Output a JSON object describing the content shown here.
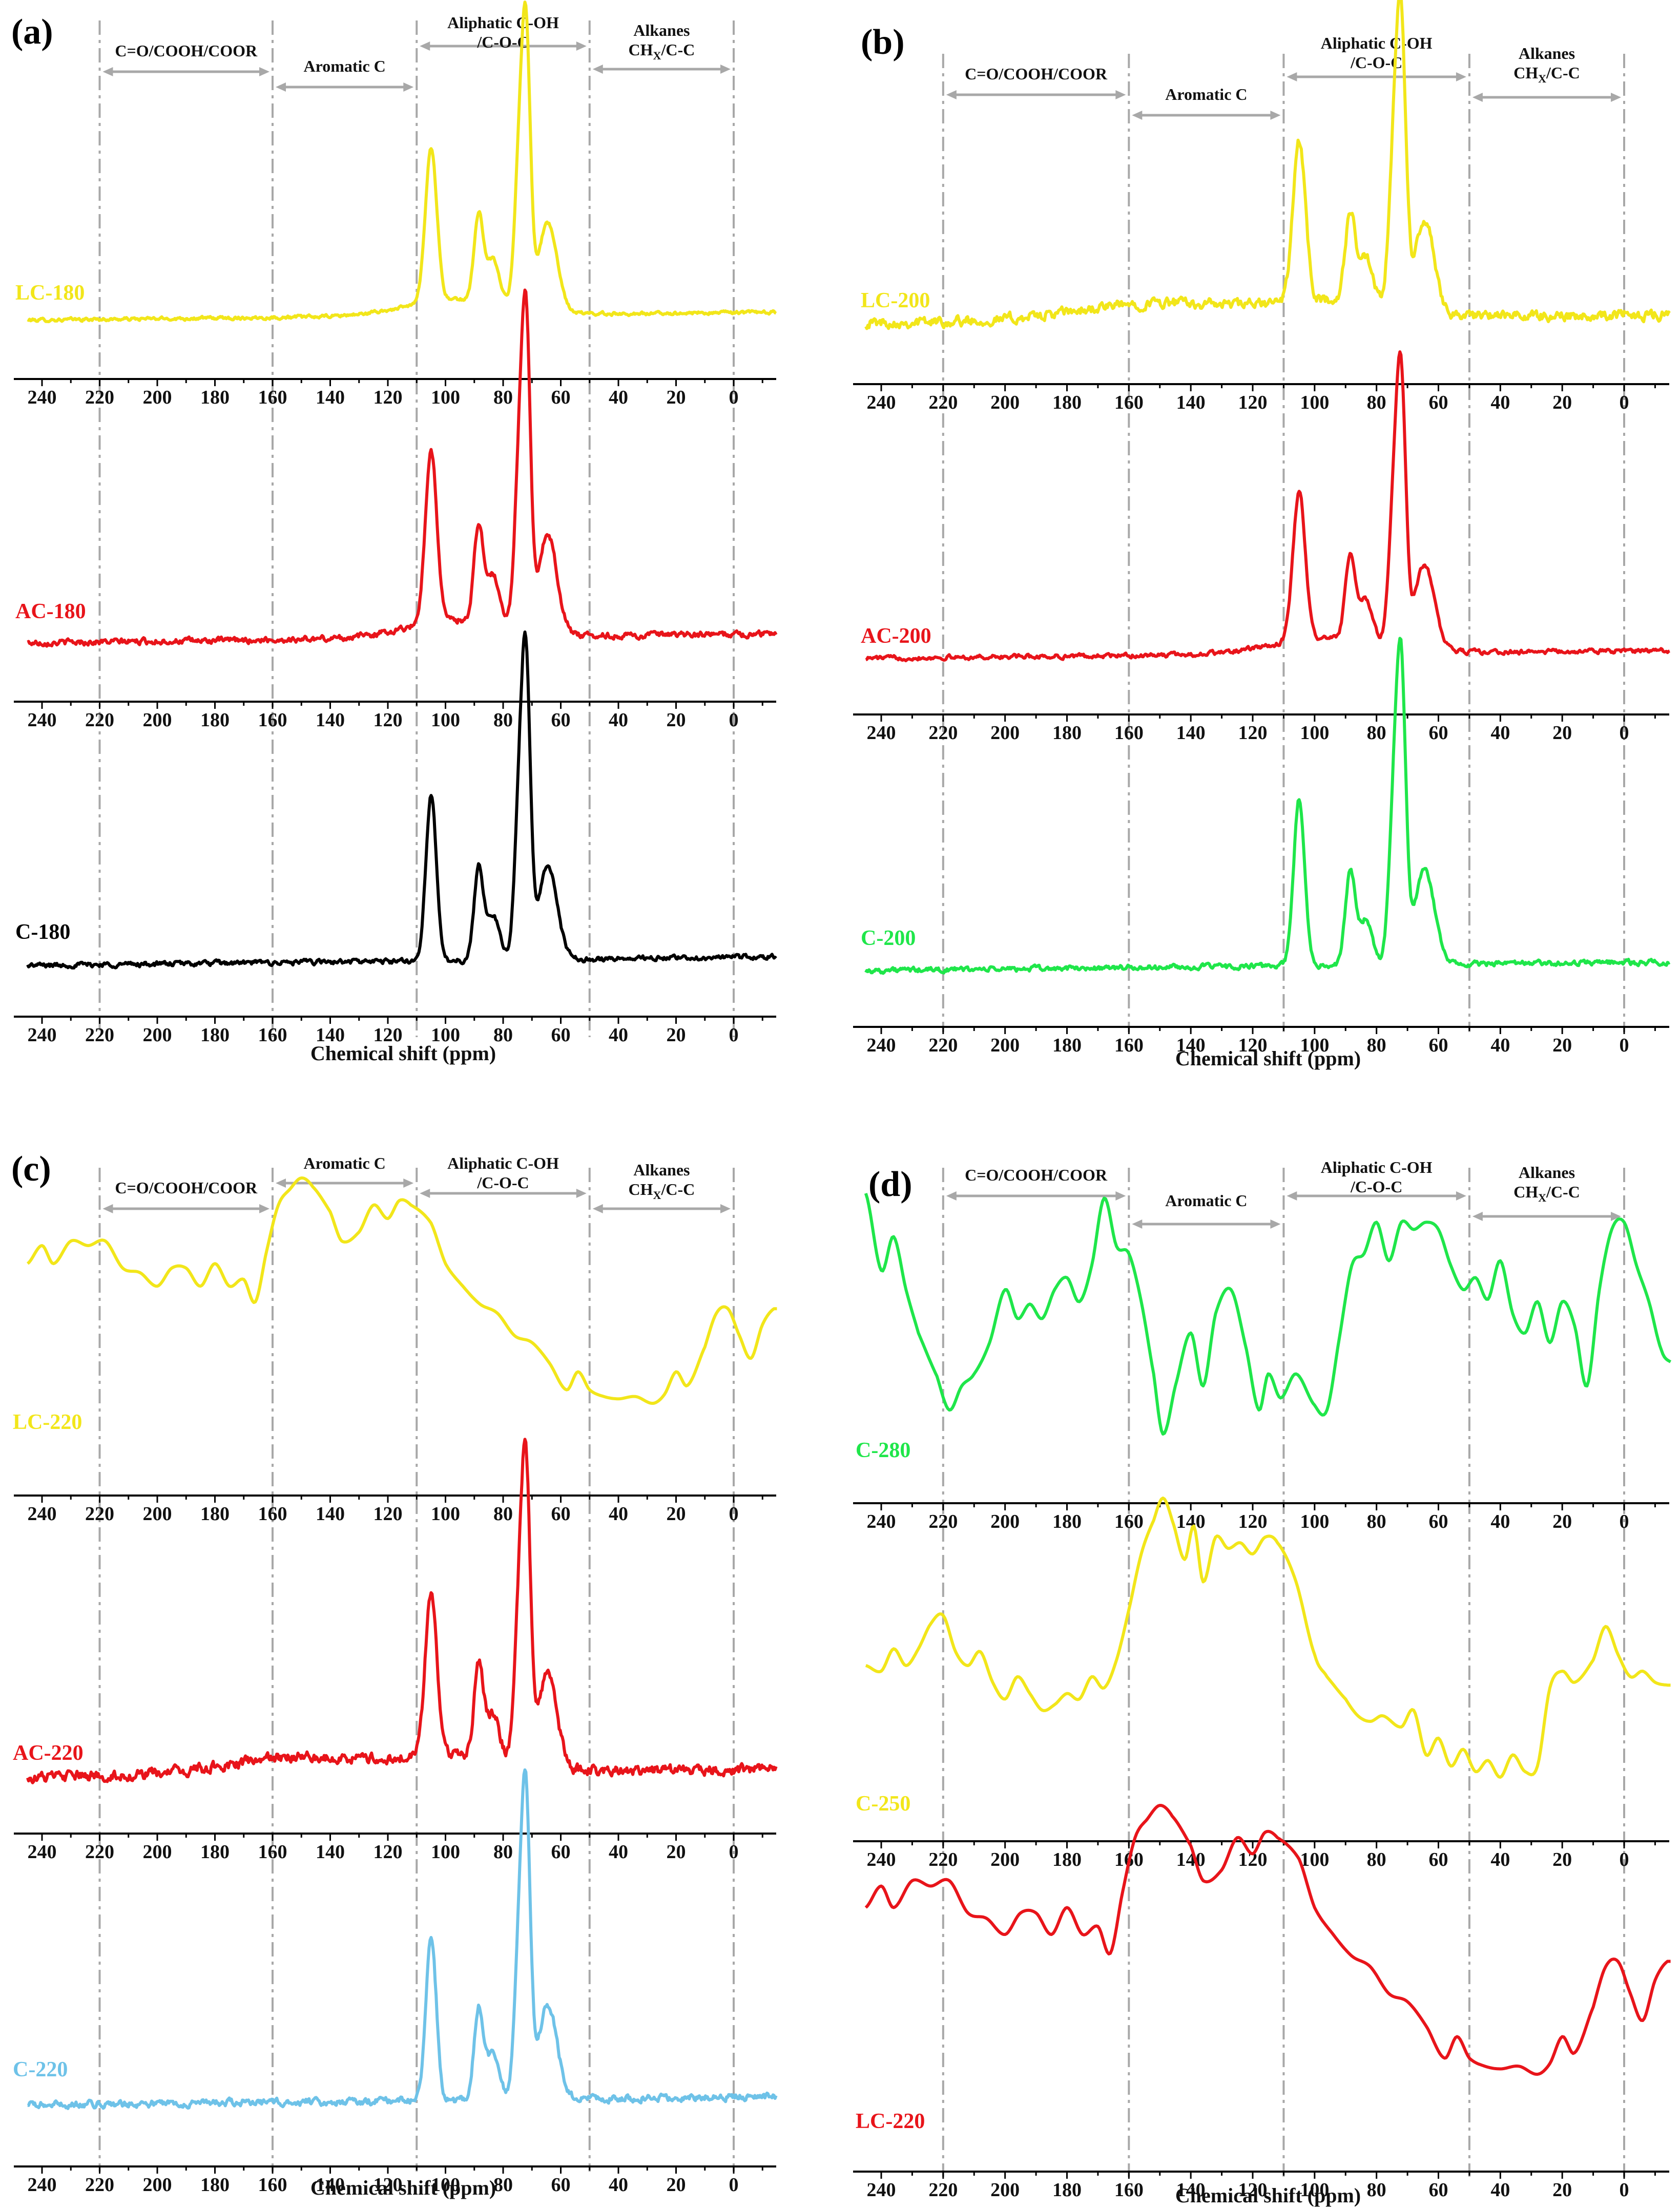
{
  "figure": {
    "xlabel": "Chemical shift (ppm)",
    "regions": {
      "carbonyl": "C=O/COOH/COOR",
      "aromatic": "Aromatic C",
      "aliphatic_line1": "Aliphatic C-OH",
      "aliphatic_line2": "/C-O-C",
      "alkanes_line1": "Alkanes",
      "alkanes_line2": "CH",
      "alkanes_sub": "X",
      "alkanes_tail": "/C-C"
    },
    "region_boundaries_ppm": [
      220,
      160,
      110,
      50,
      0
    ],
    "x_ticks": [
      "240",
      "220",
      "200",
      "180",
      "160",
      "140",
      "120",
      "100",
      "80",
      "60",
      "40",
      "20",
      "0"
    ]
  },
  "colors": {
    "yellow": "#f2e61a",
    "red": "#e8141a",
    "black": "#000000",
    "green": "#1fe64a",
    "blue": "#6ec2e8",
    "gray": "#a8a8a8"
  },
  "chart_data": [
    {
      "panel": "(a)",
      "type": "line",
      "xlabel": "Chemical shift (ppm)",
      "xlim": [
        245,
        -15
      ],
      "series": [
        {
          "name": "LC-180",
          "color": "yellow",
          "profile": "cellulose",
          "noise": 0.01
        },
        {
          "name": "AC-180",
          "color": "red",
          "profile": "cellulose",
          "noise": 0.016
        },
        {
          "name": "C-180",
          "color": "black",
          "profile": "cellulose_sharp",
          "noise": 0.014
        }
      ]
    },
    {
      "panel": "(b)",
      "type": "line",
      "xlabel": "Chemical shift (ppm)",
      "xlim": [
        245,
        -15
      ],
      "series": [
        {
          "name": "LC-200",
          "color": "yellow",
          "profile": "cellulose_aromatic",
          "noise": 0.03
        },
        {
          "name": "AC-200",
          "color": "red",
          "profile": "cellulose",
          "noise": 0.014
        },
        {
          "name": "C-200",
          "color": "green",
          "profile": "cellulose_sharp",
          "noise": 0.015
        }
      ]
    },
    {
      "panel": "(c)",
      "type": "line",
      "xlabel": "Chemical shift (ppm)",
      "xlim": [
        245,
        -15
      ],
      "series": [
        {
          "name": "LC-220",
          "color": "yellow",
          "profile": "char_220",
          "noise": 0.0
        },
        {
          "name": "AC-220",
          "color": "red",
          "profile": "cellulose_aromatic",
          "noise": 0.03
        },
        {
          "name": "C-220",
          "color": "blue",
          "profile": "cellulose_sharp",
          "noise": 0.02
        }
      ]
    },
    {
      "panel": "(d)",
      "type": "line",
      "xlabel": "Chemical shift (ppm)",
      "xlim": [
        245,
        -15
      ],
      "series": [
        {
          "name": "C-280",
          "color": "green",
          "profile": "char_280",
          "noise": 0.0
        },
        {
          "name": "C-250",
          "color": "yellow",
          "profile": "char_250",
          "noise": 0.0
        },
        {
          "name": "LC-220",
          "color": "red",
          "profile": "char_220",
          "noise": 0.0
        }
      ]
    }
  ]
}
